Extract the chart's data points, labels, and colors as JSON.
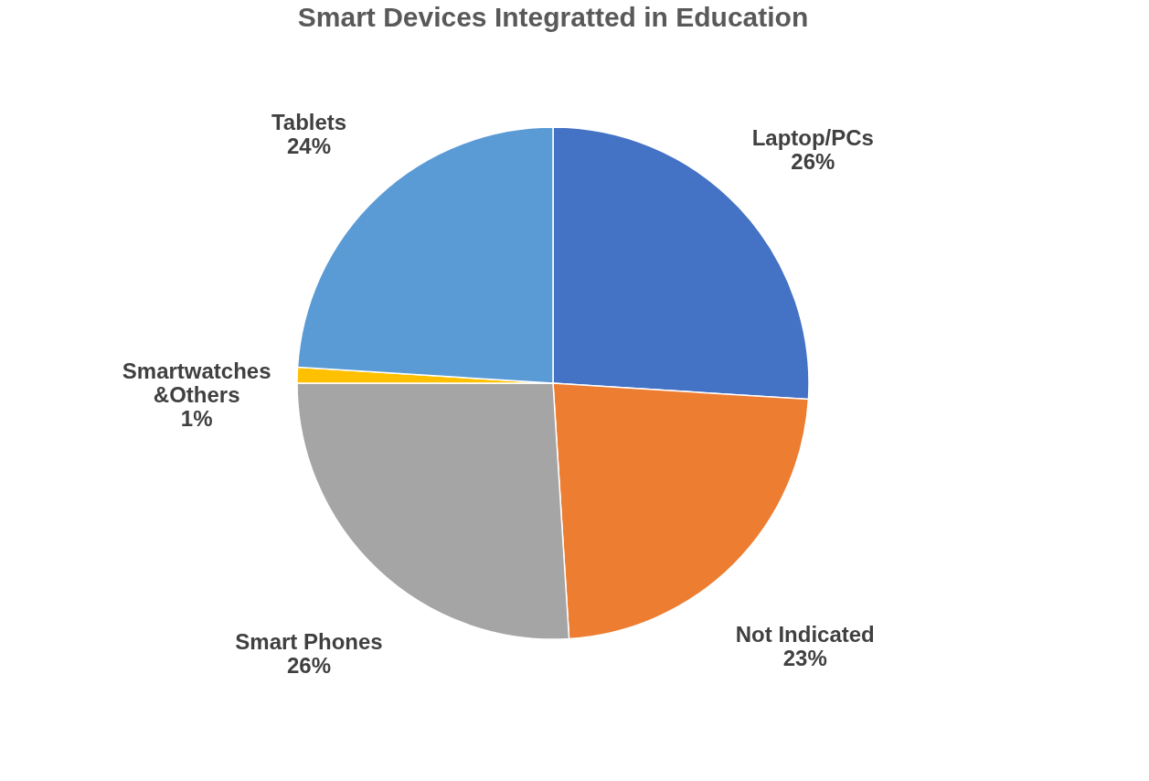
{
  "chart_data": {
    "type": "pie",
    "title": "Smart  Devices Integratted in Education",
    "categories": [
      "Laptop/PCs",
      "Not Indicated",
      "Smart Phones",
      "Smartwatches &Others",
      "Tablets"
    ],
    "values": [
      26,
      23,
      26,
      1,
      24
    ],
    "colors": [
      "#4472c4",
      "#ed7d31",
      "#a5a5a5",
      "#ffc000",
      "#5b9bd5"
    ],
    "value_labels": [
      "26%",
      "23%",
      "26%",
      "1%",
      "24%"
    ],
    "legend": false
  }
}
